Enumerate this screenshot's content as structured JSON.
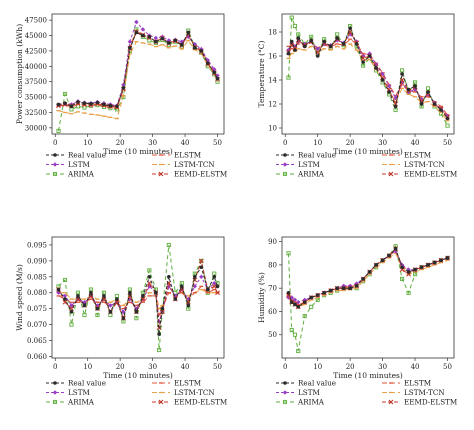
{
  "figure": {
    "legend_labels": {
      "real": "Real value",
      "elstm": "ELSTM",
      "lstm": "LSTM",
      "lstm_tcn": "LSTM-TCN",
      "arima": "ARIMA",
      "eemd_elstm": "EEMD-ELSTM"
    },
    "series_colors": {
      "real": "#2b2b2b",
      "elstm": "#e0553a",
      "lstm": "#9a3fc4",
      "lstm_tcn": "#e8a04a",
      "arima": "#5fae3e",
      "eemd_elstm": "#c0392b"
    }
  },
  "chart_data": [
    {
      "type": "line",
      "xlabel": "Time (10 minutes)",
      "ylabel": "Power consumption (kWh)",
      "xlim": [
        -1,
        52
      ],
      "ylim": [
        29000,
        48500
      ],
      "xticks": [
        0,
        10,
        20,
        30,
        40,
        50
      ],
      "yticks": [
        30000,
        32500,
        35000,
        37500,
        40000,
        42500,
        45000,
        47500
      ],
      "x": [
        1,
        3,
        5,
        7,
        9,
        11,
        13,
        15,
        17,
        19,
        21,
        23,
        25,
        27,
        29,
        31,
        33,
        35,
        37,
        39,
        41,
        43,
        45,
        47,
        49,
        50
      ],
      "series": [
        {
          "key": "real",
          "values": [
            33800,
            34000,
            33500,
            34200,
            34000,
            33900,
            34100,
            33800,
            33600,
            33500,
            36500,
            43000,
            45500,
            45000,
            44800,
            44000,
            44500,
            43800,
            44200,
            43500,
            45500,
            43000,
            42500,
            40500,
            39000,
            38000
          ]
        },
        {
          "key": "lstm",
          "values": [
            33700,
            33900,
            33800,
            34300,
            34100,
            34000,
            34200,
            34000,
            33800,
            33600,
            37000,
            44000,
            47200,
            46000,
            45000,
            44600,
            44800,
            44200,
            44300,
            44000,
            44800,
            43600,
            42800,
            41000,
            39500,
            38500
          ]
        },
        {
          "key": "arima",
          "values": [
            29500,
            35500,
            33000,
            33500,
            33300,
            33600,
            33700,
            33400,
            33200,
            33000,
            35000,
            42500,
            46000,
            44800,
            44200,
            43800,
            44300,
            43500,
            44000,
            43200,
            45800,
            43200,
            42200,
            40000,
            38700,
            37500
          ]
        },
        {
          "key": "elstm",
          "values": [
            33500,
            33700,
            33400,
            33800,
            33700,
            33600,
            33800,
            33500,
            33300,
            33200,
            36200,
            43200,
            45800,
            45200,
            44500,
            44100,
            44400,
            43900,
            44100,
            43600,
            44900,
            43300,
            42600,
            40700,
            39200,
            38100
          ]
        },
        {
          "key": "lstm_tcn",
          "values": [
            32800,
            32500,
            32300,
            32600,
            32400,
            32200,
            32100,
            31900,
            31700,
            31500,
            35200,
            42000,
            44000,
            43800,
            43600,
            43200,
            43500,
            43000,
            43300,
            42800,
            44200,
            42700,
            42100,
            40200,
            38800,
            37800
          ]
        },
        {
          "key": "eemd_elstm",
          "values": [
            33600,
            33800,
            33600,
            34000,
            33800,
            33700,
            33900,
            33700,
            33500,
            33400,
            36300,
            42900,
            45600,
            45100,
            44700,
            44000,
            44600,
            43700,
            44100,
            43400,
            45300,
            43100,
            42400,
            40400,
            38900,
            37900
          ]
        }
      ]
    },
    {
      "type": "line",
      "xlabel": "Time (10 minutes)",
      "ylabel": "Temperature (°C)",
      "xlim": [
        -1,
        52
      ],
      "ylim": [
        9.5,
        19.5
      ],
      "xticks": [
        0,
        10,
        20,
        30,
        40,
        50
      ],
      "yticks": [
        10,
        12,
        14,
        16,
        18
      ],
      "x": [
        1,
        2,
        3,
        4,
        6,
        8,
        10,
        12,
        14,
        16,
        18,
        20,
        22,
        24,
        26,
        28,
        30,
        32,
        34,
        36,
        38,
        40,
        42,
        44,
        46,
        48,
        50
      ],
      "series": [
        {
          "key": "real",
          "values": [
            16.2,
            17.2,
            16.5,
            17.5,
            16.8,
            17.3,
            16.0,
            17.2,
            16.8,
            17.5,
            17.0,
            18.3,
            17.0,
            15.5,
            16.0,
            15.0,
            14.0,
            13.0,
            11.8,
            14.5,
            13.2,
            13.5,
            12.0,
            13.0,
            12.0,
            11.5,
            10.8
          ]
        },
        {
          "key": "lstm",
          "values": [
            16.5,
            17.0,
            16.8,
            17.2,
            17.0,
            17.2,
            16.6,
            17.0,
            16.9,
            17.3,
            17.1,
            17.8,
            17.2,
            16.0,
            16.2,
            15.3,
            14.5,
            13.5,
            12.5,
            13.8,
            13.0,
            13.2,
            12.4,
            12.8,
            12.1,
            11.6,
            11.0
          ]
        },
        {
          "key": "arima",
          "values": [
            14.2,
            19.2,
            18.5,
            17.8,
            17.0,
            17.6,
            16.2,
            17.4,
            16.7,
            17.8,
            16.9,
            18.5,
            16.8,
            15.2,
            15.8,
            14.8,
            13.8,
            12.8,
            11.5,
            14.8,
            13.0,
            13.8,
            11.8,
            13.3,
            11.8,
            11.2,
            10.2
          ]
        },
        {
          "key": "elstm",
          "values": [
            16.8,
            16.6,
            16.9,
            17.0,
            16.9,
            17.1,
            16.7,
            16.9,
            16.8,
            17.0,
            16.9,
            17.4,
            17.0,
            16.2,
            16.1,
            15.4,
            14.6,
            13.6,
            12.7,
            13.6,
            13.1,
            13.0,
            12.6,
            12.6,
            12.2,
            11.8,
            11.1
          ]
        },
        {
          "key": "lstm_tcn",
          "values": [
            15.8,
            16.2,
            16.4,
            16.6,
            16.5,
            16.8,
            16.3,
            16.6,
            16.5,
            16.8,
            16.6,
            17.0,
            16.5,
            15.6,
            15.7,
            14.9,
            14.0,
            13.0,
            12.2,
            13.3,
            12.8,
            12.6,
            12.1,
            12.2,
            11.8,
            11.3,
            10.6
          ]
        },
        {
          "key": "eemd_elstm",
          "values": [
            16.3,
            16.9,
            16.6,
            17.3,
            16.9,
            17.2,
            16.3,
            17.1,
            16.8,
            17.4,
            17.0,
            18.0,
            17.1,
            15.8,
            16.0,
            15.1,
            14.2,
            13.2,
            12.0,
            14.0,
            13.1,
            13.4,
            12.2,
            12.9,
            12.0,
            11.6,
            10.9
          ]
        }
      ]
    },
    {
      "type": "line",
      "xlabel": "Time (10 minutes)",
      "ylabel": "Wind speed (M/s)",
      "xlim": [
        -1,
        52
      ],
      "ylim": [
        0.0595,
        0.0975
      ],
      "xticks": [
        0,
        10,
        20,
        30,
        40,
        50
      ],
      "yticks": [
        0.06,
        0.065,
        0.07,
        0.075,
        0.08,
        0.085,
        0.09,
        0.095
      ],
      "x": [
        1,
        3,
        5,
        7,
        9,
        11,
        13,
        15,
        17,
        19,
        21,
        23,
        25,
        27,
        29,
        31,
        32,
        33,
        35,
        37,
        39,
        41,
        43,
        45,
        47,
        49,
        50
      ],
      "series": [
        {
          "key": "real",
          "values": [
            0.081,
            0.078,
            0.074,
            0.079,
            0.076,
            0.08,
            0.075,
            0.079,
            0.074,
            0.078,
            0.072,
            0.08,
            0.074,
            0.079,
            0.085,
            0.08,
            0.067,
            0.075,
            0.085,
            0.078,
            0.082,
            0.076,
            0.085,
            0.088,
            0.081,
            0.085,
            0.082
          ]
        },
        {
          "key": "lstm",
          "values": [
            0.08,
            0.079,
            0.076,
            0.078,
            0.077,
            0.079,
            0.076,
            0.078,
            0.076,
            0.077,
            0.074,
            0.078,
            0.075,
            0.078,
            0.082,
            0.08,
            0.071,
            0.074,
            0.082,
            0.079,
            0.081,
            0.078,
            0.082,
            0.085,
            0.081,
            0.083,
            0.082
          ]
        },
        {
          "key": "arima",
          "values": [
            0.082,
            0.084,
            0.07,
            0.08,
            0.073,
            0.081,
            0.073,
            0.08,
            0.073,
            0.079,
            0.071,
            0.081,
            0.072,
            0.08,
            0.087,
            0.081,
            0.062,
            0.074,
            0.095,
            0.08,
            0.083,
            0.075,
            0.086,
            0.09,
            0.08,
            0.086,
            0.083
          ]
        },
        {
          "key": "elstm",
          "values": [
            0.079,
            0.078,
            0.077,
            0.077,
            0.077,
            0.078,
            0.077,
            0.077,
            0.076,
            0.077,
            0.075,
            0.077,
            0.076,
            0.077,
            0.079,
            0.079,
            0.073,
            0.075,
            0.08,
            0.079,
            0.08,
            0.078,
            0.08,
            0.082,
            0.08,
            0.081,
            0.08
          ]
        },
        {
          "key": "lstm_tcn",
          "values": [
            0.08,
            0.08,
            0.078,
            0.078,
            0.078,
            0.079,
            0.078,
            0.078,
            0.077,
            0.078,
            0.076,
            0.078,
            0.077,
            0.078,
            0.08,
            0.08,
            0.075,
            0.076,
            0.08,
            0.079,
            0.08,
            0.079,
            0.08,
            0.081,
            0.08,
            0.08,
            0.08
          ]
        },
        {
          "key": "eemd_elstm",
          "values": [
            0.081,
            0.077,
            0.075,
            0.078,
            0.076,
            0.079,
            0.075,
            0.078,
            0.074,
            0.077,
            0.072,
            0.079,
            0.074,
            0.078,
            0.083,
            0.08,
            0.069,
            0.074,
            0.083,
            0.078,
            0.081,
            0.077,
            0.084,
            0.09,
            0.081,
            0.082,
            0.08
          ]
        }
      ]
    },
    {
      "type": "line",
      "xlabel": "Time (10 minutes)",
      "ylabel": "Humidity (%)",
      "xlim": [
        -1,
        52
      ],
      "ylim": [
        40,
        92
      ],
      "xticks": [
        0,
        10,
        20,
        30,
        40,
        50
      ],
      "yticks": [
        50,
        60,
        70,
        80,
        90
      ],
      "x": [
        1,
        2,
        3,
        4,
        6,
        8,
        10,
        12,
        14,
        16,
        18,
        20,
        22,
        24,
        26,
        28,
        30,
        32,
        34,
        36,
        38,
        40,
        42,
        44,
        46,
        48,
        50
      ],
      "series": [
        {
          "key": "real",
          "values": [
            68,
            64,
            63,
            62,
            64,
            66,
            67,
            68,
            69,
            70,
            70,
            70,
            71,
            74,
            77,
            80,
            82,
            84,
            87,
            79,
            77,
            78,
            79,
            80,
            81,
            82,
            83
          ]
        },
        {
          "key": "lstm",
          "values": [
            66,
            66,
            65,
            64,
            65,
            66,
            67,
            68,
            69,
            70,
            71,
            71,
            72,
            74,
            77,
            80,
            82,
            84,
            86,
            80,
            78,
            78,
            79,
            80,
            81,
            82,
            83
          ]
        },
        {
          "key": "arima",
          "values": [
            85,
            52,
            50,
            43,
            58,
            62,
            65,
            67,
            68,
            69,
            70,
            70,
            70,
            73,
            76,
            79,
            82,
            84,
            88,
            74,
            68,
            76,
            79,
            80,
            81,
            82,
            83
          ]
        },
        {
          "key": "elstm",
          "values": [
            67,
            65,
            64,
            63,
            64,
            66,
            67,
            68,
            69,
            70,
            70,
            71,
            71,
            74,
            77,
            80,
            82,
            84,
            86,
            80,
            77,
            78,
            79,
            80,
            81,
            82,
            83
          ]
        },
        {
          "key": "lstm_tcn",
          "values": [
            66,
            64,
            63,
            62,
            63,
            65,
            66,
            67,
            68,
            69,
            69,
            70,
            70,
            73,
            76,
            79,
            81,
            83,
            85,
            79,
            76,
            77,
            78,
            79,
            80,
            81,
            82
          ]
        },
        {
          "key": "eemd_elstm",
          "values": [
            67,
            64,
            63,
            62,
            64,
            66,
            67,
            68,
            69,
            70,
            70,
            70,
            71,
            74,
            77,
            80,
            82,
            84,
            87,
            78,
            76,
            78,
            79,
            80,
            81,
            82,
            83
          ]
        }
      ]
    }
  ]
}
